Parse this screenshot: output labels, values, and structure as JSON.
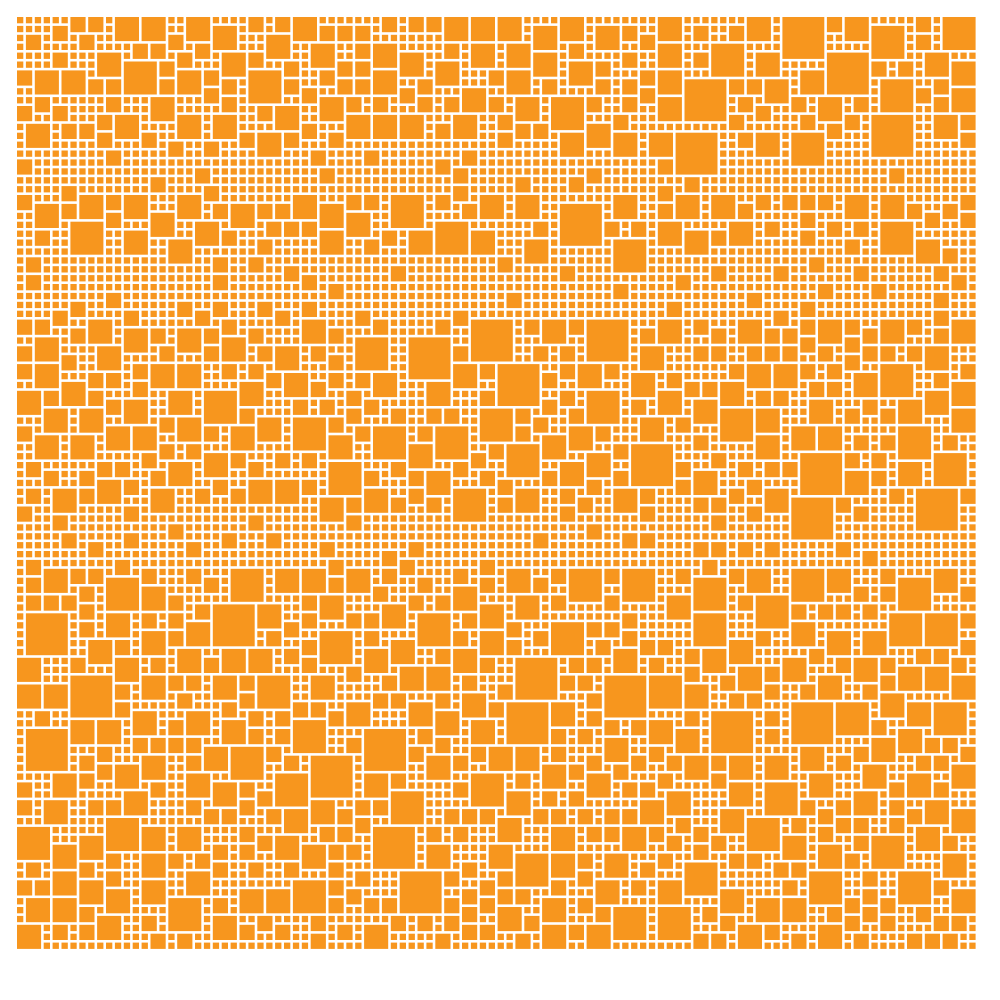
{
  "colors": {
    "tile": "#F7961E",
    "background": "#FFFFFF"
  },
  "mosaic": {
    "description_shape": "square-tile mosaic"
  }
}
